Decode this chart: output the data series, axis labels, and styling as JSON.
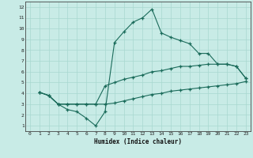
{
  "xlabel": "Humidex (Indice chaleur)",
  "bg_color": "#c8ebe6",
  "grid_color": "#a8d8d0",
  "line_color": "#1a6b5a",
  "xlim": [
    -0.5,
    23.5
  ],
  "ylim": [
    0.5,
    12.5
  ],
  "xticks": [
    0,
    1,
    2,
    3,
    4,
    5,
    6,
    7,
    8,
    9,
    10,
    11,
    12,
    13,
    14,
    15,
    16,
    17,
    18,
    19,
    20,
    21,
    22,
    23
  ],
  "yticks": [
    1,
    2,
    3,
    4,
    5,
    6,
    7,
    8,
    9,
    10,
    11,
    12
  ],
  "line1_x": [
    1,
    2,
    3,
    4,
    5,
    6,
    7,
    8,
    9,
    10,
    11,
    12,
    13,
    14,
    15,
    16,
    17,
    18,
    19,
    20,
    21,
    22,
    23
  ],
  "line1_y": [
    4.1,
    3.8,
    3.0,
    2.5,
    2.3,
    1.7,
    1.0,
    2.3,
    8.7,
    9.7,
    10.6,
    11.0,
    11.8,
    9.6,
    9.2,
    8.9,
    8.6,
    7.7,
    7.7,
    6.7,
    6.7,
    6.5,
    5.4
  ],
  "line2_x": [
    1,
    2,
    3,
    4,
    5,
    6,
    7,
    8,
    9,
    10,
    11,
    12,
    13,
    14,
    15,
    16,
    17,
    18,
    19,
    20,
    21,
    22,
    23
  ],
  "line2_y": [
    4.1,
    3.8,
    3.0,
    3.0,
    3.0,
    3.0,
    3.0,
    4.7,
    5.0,
    5.3,
    5.5,
    5.7,
    6.0,
    6.1,
    6.3,
    6.5,
    6.5,
    6.6,
    6.7,
    6.7,
    6.7,
    6.5,
    5.4
  ],
  "line3_x": [
    1,
    2,
    3,
    4,
    5,
    6,
    7,
    8,
    9,
    10,
    11,
    12,
    13,
    14,
    15,
    16,
    17,
    18,
    19,
    20,
    21,
    22,
    23
  ],
  "line3_y": [
    4.1,
    3.8,
    3.0,
    3.0,
    3.0,
    3.0,
    3.0,
    3.0,
    3.1,
    3.3,
    3.5,
    3.7,
    3.9,
    4.0,
    4.2,
    4.3,
    4.4,
    4.5,
    4.6,
    4.7,
    4.8,
    4.9,
    5.1
  ]
}
